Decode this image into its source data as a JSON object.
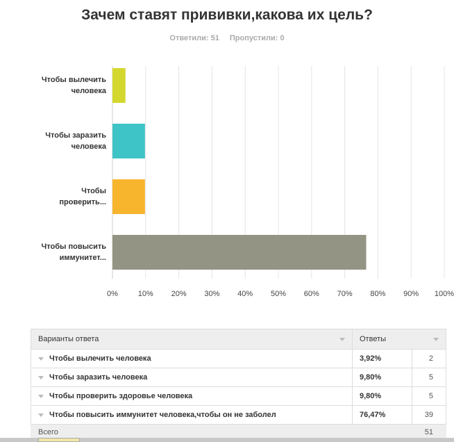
{
  "survey": {
    "title": "Зачем ставят прививки,какова их цель?",
    "answered_label": "Ответили: 51",
    "skipped_label": "Пропустили: 0"
  },
  "chart_data": {
    "type": "bar",
    "orientation": "horizontal",
    "categories": [
      "Чтобы вылечить\nчеловека",
      "Чтобы заразить\nчеловека",
      "Чтобы\nпроверить...",
      "Чтобы повысить\nиммунитет..."
    ],
    "values": [
      3.92,
      9.8,
      9.8,
      76.47
    ],
    "colors": [
      "#d4d82e",
      "#3ec4c6",
      "#f7b52e",
      "#949484"
    ],
    "xlim": [
      0,
      100
    ],
    "xticks": [
      "0%",
      "10%",
      "20%",
      "30%",
      "40%",
      "50%",
      "60%",
      "70%",
      "80%",
      "90%",
      "100%"
    ],
    "grid": true
  },
  "table": {
    "header_answer": "Варианты ответа",
    "header_responses": "Ответы",
    "rows": [
      {
        "label": "Чтобы вылечить человека",
        "percent": "3,92%",
        "count": "2"
      },
      {
        "label": "Чтобы заразить человека",
        "percent": "9,80%",
        "count": "5"
      },
      {
        "label": "Чтобы проверить здоровье человека",
        "percent": "9,80%",
        "count": "5"
      },
      {
        "label": "Чтобы повысить иммунитет человека,чтобы он не заболел",
        "percent": "76,47%",
        "count": "39"
      }
    ],
    "total_label": "Всего",
    "total_count": "51"
  }
}
